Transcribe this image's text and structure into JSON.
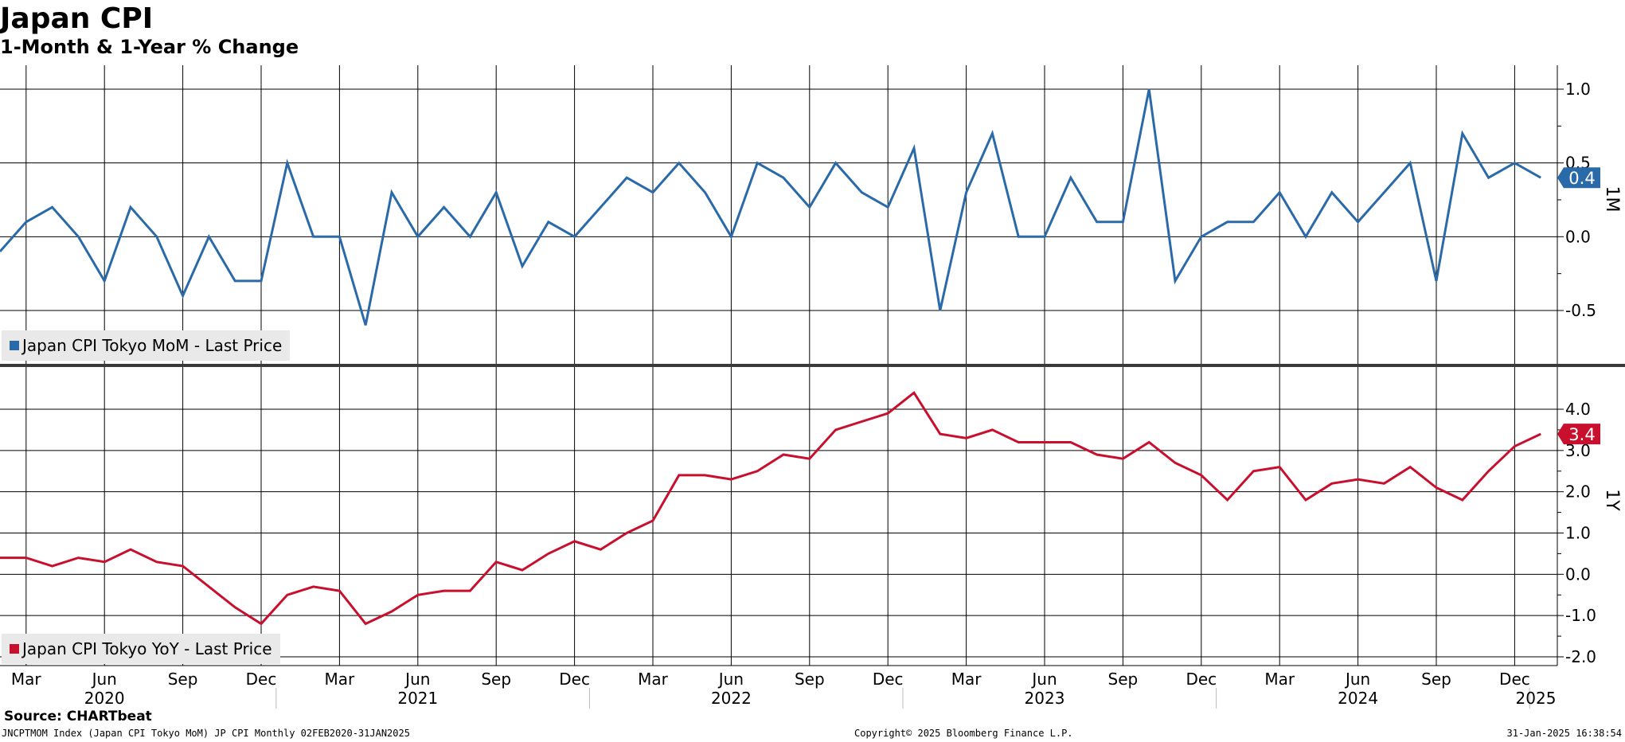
{
  "title": "Japan CPI",
  "subtitle": "1-Month & 1-Year % Change",
  "source": "Source: CHARTbeat",
  "footer": {
    "left": "JNCPTMOM Index (Japan CPI Tokyo MoM) JP CPI  Monthly 02FEB2020-31JAN2025",
    "center": "Copyright© 2025 Bloomberg Finance L.P.",
    "right": "31-Jan-2025 16:38:54"
  },
  "colors": {
    "mom": "#2b6aa8",
    "yoy": "#c8102e",
    "grid": "#000000",
    "divider": "#3a3a3a"
  },
  "chart_data": [
    {
      "type": "line",
      "panel_label": "1M",
      "ylim": [
        -0.9,
        1.2
      ],
      "yticks": [
        -0.5,
        0.0,
        0.5,
        1.0
      ],
      "ytick_labels": [
        "-0.5",
        "0.0",
        "0.5",
        "1.0"
      ],
      "last_value_label": "0.4",
      "series": [
        {
          "name": "Japan CPI Tokyo MoM - Last Price",
          "x": [
            "2020-02",
            "2020-03",
            "2020-04",
            "2020-05",
            "2020-06",
            "2020-07",
            "2020-08",
            "2020-09",
            "2020-10",
            "2020-11",
            "2020-12",
            "2021-01",
            "2021-02",
            "2021-03",
            "2021-04",
            "2021-05",
            "2021-06",
            "2021-07",
            "2021-08",
            "2021-09",
            "2021-10",
            "2021-11",
            "2021-12",
            "2022-01",
            "2022-02",
            "2022-03",
            "2022-04",
            "2022-05",
            "2022-06",
            "2022-07",
            "2022-08",
            "2022-09",
            "2022-10",
            "2022-11",
            "2022-12",
            "2023-01",
            "2023-02",
            "2023-03",
            "2023-04",
            "2023-05",
            "2023-06",
            "2023-07",
            "2023-08",
            "2023-09",
            "2023-10",
            "2023-11",
            "2023-12",
            "2024-01",
            "2024-02",
            "2024-03",
            "2024-04",
            "2024-05",
            "2024-06",
            "2024-07",
            "2024-08",
            "2024-09",
            "2024-10",
            "2024-11",
            "2024-12",
            "2025-01"
          ],
          "values": [
            -0.1,
            0.1,
            0.2,
            0.0,
            -0.3,
            0.2,
            0.0,
            -0.4,
            0.0,
            -0.3,
            -0.3,
            0.5,
            0.0,
            0.0,
            -0.6,
            0.3,
            0.0,
            0.2,
            0.0,
            0.3,
            -0.2,
            0.1,
            0.0,
            0.2,
            0.4,
            0.3,
            0.5,
            0.3,
            0.0,
            0.5,
            0.4,
            0.2,
            0.5,
            0.3,
            0.2,
            0.6,
            -0.5,
            0.3,
            0.7,
            0.0,
            0.0,
            0.4,
            0.1,
            0.1,
            1.0,
            -0.3,
            0.0,
            0.1,
            0.1,
            0.3,
            0.0,
            0.3,
            0.1,
            0.3,
            0.5,
            -0.3,
            0.7,
            0.4,
            0.5,
            0.4
          ]
        }
      ]
    },
    {
      "type": "line",
      "panel_label": "1Y",
      "ylim": [
        -2.2,
        4.6
      ],
      "yticks": [
        -2.0,
        -1.0,
        0.0,
        1.0,
        2.0,
        3.0,
        4.0
      ],
      "ytick_labels": [
        "-2.0",
        "-1.0",
        "0.0",
        "1.0",
        "2.0",
        "3.0",
        "4.0"
      ],
      "last_value_label": "3.4",
      "series": [
        {
          "name": "Japan CPI Tokyo YoY - Last Price",
          "x": [
            "2020-02",
            "2020-03",
            "2020-04",
            "2020-05",
            "2020-06",
            "2020-07",
            "2020-08",
            "2020-09",
            "2020-10",
            "2020-11",
            "2020-12",
            "2021-01",
            "2021-02",
            "2021-03",
            "2021-04",
            "2021-05",
            "2021-06",
            "2021-07",
            "2021-08",
            "2021-09",
            "2021-10",
            "2021-11",
            "2021-12",
            "2022-01",
            "2022-02",
            "2022-03",
            "2022-04",
            "2022-05",
            "2022-06",
            "2022-07",
            "2022-08",
            "2022-09",
            "2022-10",
            "2022-11",
            "2022-12",
            "2023-01",
            "2023-02",
            "2023-03",
            "2023-04",
            "2023-05",
            "2023-06",
            "2023-07",
            "2023-08",
            "2023-09",
            "2023-10",
            "2023-11",
            "2023-12",
            "2024-01",
            "2024-02",
            "2024-03",
            "2024-04",
            "2024-05",
            "2024-06",
            "2024-07",
            "2024-08",
            "2024-09",
            "2024-10",
            "2024-11",
            "2024-12",
            "2025-01"
          ],
          "values": [
            0.4,
            0.4,
            0.2,
            0.4,
            0.3,
            0.6,
            0.3,
            0.2,
            -0.3,
            -0.8,
            -1.2,
            -0.5,
            -0.3,
            -0.4,
            -1.2,
            -0.9,
            -0.5,
            -0.4,
            -0.4,
            0.3,
            0.1,
            0.5,
            0.8,
            0.6,
            1.0,
            1.3,
            2.4,
            2.4,
            2.3,
            2.5,
            2.9,
            2.8,
            3.5,
            3.7,
            3.9,
            4.4,
            3.4,
            3.3,
            3.5,
            3.2,
            3.2,
            3.2,
            2.9,
            2.8,
            3.2,
            2.7,
            2.4,
            1.8,
            2.5,
            2.6,
            1.8,
            2.2,
            2.3,
            2.2,
            2.6,
            2.1,
            1.8,
            2.5,
            3.1,
            3.4
          ]
        }
      ]
    }
  ],
  "x_axis": {
    "month_ticks": [
      {
        "x": "2020-03",
        "label": "Mar"
      },
      {
        "x": "2020-06",
        "label": "Jun"
      },
      {
        "x": "2020-09",
        "label": "Sep"
      },
      {
        "x": "2020-12",
        "label": "Dec"
      },
      {
        "x": "2021-03",
        "label": "Mar"
      },
      {
        "x": "2021-06",
        "label": "Jun"
      },
      {
        "x": "2021-09",
        "label": "Sep"
      },
      {
        "x": "2021-12",
        "label": "Dec"
      },
      {
        "x": "2022-03",
        "label": "Mar"
      },
      {
        "x": "2022-06",
        "label": "Jun"
      },
      {
        "x": "2022-09",
        "label": "Sep"
      },
      {
        "x": "2022-12",
        "label": "Dec"
      },
      {
        "x": "2023-03",
        "label": "Mar"
      },
      {
        "x": "2023-06",
        "label": "Jun"
      },
      {
        "x": "2023-09",
        "label": "Sep"
      },
      {
        "x": "2023-12",
        "label": "Dec"
      },
      {
        "x": "2024-03",
        "label": "Mar"
      },
      {
        "x": "2024-06",
        "label": "Jun"
      },
      {
        "x": "2024-09",
        "label": "Sep"
      },
      {
        "x": "2024-12",
        "label": "Dec"
      }
    ],
    "year_labels": [
      {
        "year": "2020",
        "x": "2020-06"
      },
      {
        "year": "2021",
        "x": "2021-06"
      },
      {
        "year": "2022",
        "x": "2022-06"
      },
      {
        "year": "2023",
        "x": "2023-06"
      },
      {
        "year": "2024",
        "x": "2024-06"
      },
      {
        "year": "2025",
        "x": "2025-01"
      }
    ]
  }
}
